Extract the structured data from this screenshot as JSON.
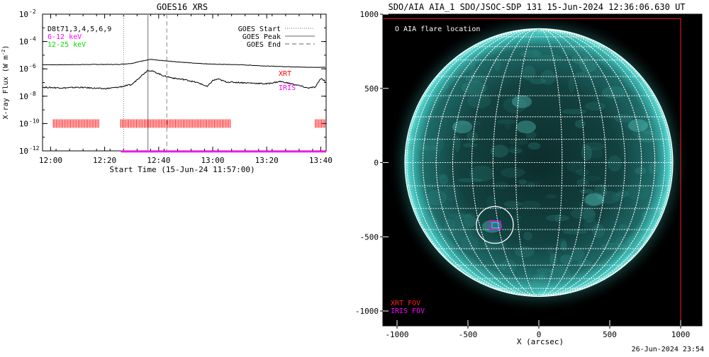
{
  "footer": {
    "timestamp": "26-Jun-2024 23:54"
  },
  "chart_data": [
    {
      "type": "line",
      "title": "GOES16 XRS",
      "xlabel": "Start Time (15-Jun-24 11:57:00)",
      "ylabel": "X-ray Flux (W m",
      "ylabel_sup": "-2",
      "ylabel_close": ")",
      "yscale": "log",
      "xlim": [
        "11:57",
        "13:42"
      ],
      "ylim": [
        1e-12,
        0.01
      ],
      "x_ticks": [
        "12:00",
        "12:20",
        "12:40",
        "13:00",
        "13:20",
        "13:40"
      ],
      "y_ticks": [
        {
          "base": "10",
          "exp": "-12"
        },
        {
          "base": "10",
          "exp": "-10"
        },
        {
          "base": "10",
          "exp": "-8"
        },
        {
          "base": "10",
          "exp": "-6"
        },
        {
          "base": "10",
          "exp": "-4"
        },
        {
          "base": "10",
          "exp": "-2"
        }
      ],
      "legend_top_left": [
        {
          "text": "D8t71,3,4,5,6,9",
          "color": "#000000"
        },
        {
          "text": "6-12 keV",
          "color": "#ff00ff"
        },
        {
          "text": "12-25 keV",
          "color": "#00ee00"
        }
      ],
      "legend_top_right": [
        {
          "text": "GOES Start",
          "style": "dotted"
        },
        {
          "text": "GOES Peak",
          "style": "solid"
        },
        {
          "text": "GOES End",
          "style": "dashed"
        }
      ],
      "event_markers": {
        "start": "12:27",
        "peak": "12:36",
        "end": "12:43"
      },
      "series": [
        {
          "name": "",
          "color": "#000000",
          "points": [
            [
              "11:57",
              2e-06
            ],
            [
              "12:05",
              2e-06
            ],
            [
              "12:15",
              2.1e-06
            ],
            [
              "12:25",
              2.1e-06
            ],
            [
              "12:30",
              2.5e-06
            ],
            [
              "12:34",
              3.8e-06
            ],
            [
              "12:37",
              5e-06
            ],
            [
              "12:40",
              4.2e-06
            ],
            [
              "12:45",
              3.5e-06
            ],
            [
              "12:50",
              2.9e-06
            ],
            [
              "12:55",
              2.5e-06
            ],
            [
              "13:00",
              2.2e-06
            ],
            [
              "13:05",
              2.1e-06
            ],
            [
              "13:10",
              2e-06
            ],
            [
              "13:15",
              1.8e-06
            ],
            [
              "13:20",
              1.6e-06
            ],
            [
              "13:25",
              1.5e-06
            ],
            [
              "13:30",
              1.4e-06
            ],
            [
              "13:35",
              1.3e-06
            ],
            [
              "13:40",
              1.3e-06
            ],
            [
              "13:42",
              1.3e-06
            ]
          ]
        },
        {
          "name": "",
          "color": "#000000",
          "points": [
            [
              "11:57",
              4.5e-08
            ],
            [
              "12:05",
              4e-08
            ],
            [
              "12:10",
              4.5e-08
            ],
            [
              "12:15",
              4e-08
            ],
            [
              "12:20",
              3.5e-08
            ],
            [
              "12:25",
              4.5e-08
            ],
            [
              "12:30",
              7e-08
            ],
            [
              "12:33",
              2.5e-07
            ],
            [
              "12:36",
              8e-07
            ],
            [
              "12:38",
              6.5e-07
            ],
            [
              "12:42",
              3e-07
            ],
            [
              "12:46",
              2e-07
            ],
            [
              "12:50",
              1.6e-07
            ],
            [
              "12:55",
              9e-08
            ],
            [
              "12:58",
              5e-08
            ],
            [
              "13:00",
              1.4e-07
            ],
            [
              "13:02",
              1.8e-07
            ],
            [
              "13:05",
              1.1e-07
            ],
            [
              "13:10",
              1e-07
            ],
            [
              "13:15",
              9e-08
            ],
            [
              "13:20",
              8e-08
            ],
            [
              "13:25",
              1.2e-07
            ],
            [
              "13:28",
              9e-08
            ],
            [
              "13:32",
              6e-08
            ],
            [
              "13:35",
              4e-08
            ],
            [
              "13:38",
              4.5e-08
            ],
            [
              "13:40",
              2e-07
            ],
            [
              "13:42",
              1.2e-07
            ]
          ]
        }
      ],
      "coverage": [
        {
          "label": "XRT",
          "color": "#ff0000",
          "flux": 1e-10,
          "intervals": [
            [
              "12:01",
              "12:18"
            ],
            [
              "12:26",
              "13:07"
            ],
            [
              "13:38",
              "13:42"
            ]
          ]
        },
        {
          "label": "IRIS",
          "color": "#ff00ff",
          "flux": 1e-12,
          "intervals": [
            [
              "12:26",
              "13:42"
            ]
          ]
        }
      ]
    },
    {
      "type": "scatter",
      "title": "SDO/AIA AIA_1 SDO/JSOC-SDP 131 15-Jun-2024 12:36:06.630 UT",
      "xlabel": "X (arcsec)",
      "ylabel": "",
      "xlim": [
        -1100,
        1150
      ],
      "ylim": [
        -1100,
        1000
      ],
      "x_ticks": [
        -1000,
        -500,
        0,
        500,
        1000
      ],
      "y_ticks": [
        -1000,
        -500,
        0,
        500,
        1000
      ],
      "legend": [
        {
          "text": "O AIA flare location",
          "color": "#ffffff"
        },
        {
          "text": "XRT FOV",
          "color": "#ff2020"
        },
        {
          "text": "IRIS FOV",
          "color": "#ff00ff"
        }
      ],
      "solar_radius_arcsec": 945,
      "grid_spacing_deg": 10,
      "flare_location": {
        "x": -310,
        "y": -420
      },
      "xrt_fov": {
        "x0": -1100,
        "x1": 1000,
        "y0": -1100,
        "y1": 970
      },
      "iris_fov": {
        "x0": -345,
        "x1": -270,
        "y0": -450,
        "y1": -395
      }
    }
  ]
}
